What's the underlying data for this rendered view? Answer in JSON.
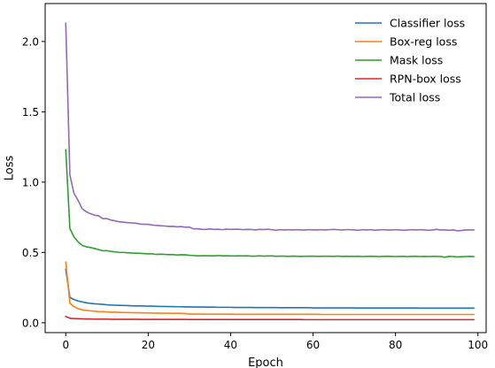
{
  "chart_data": {
    "type": "line",
    "xlabel": "Epoch",
    "ylabel": "Loss",
    "xlim": [
      -5,
      102
    ],
    "ylim": [
      -0.07,
      2.27
    ],
    "xticks": [
      0,
      20,
      40,
      60,
      80,
      100
    ],
    "yticks": [
      0.0,
      0.5,
      1.0,
      1.5,
      2.0
    ],
    "xtick_labels": [
      "0",
      "20",
      "40",
      "60",
      "80",
      "100"
    ],
    "ytick_labels": [
      "0.0",
      "0.5",
      "1.0",
      "1.5",
      "2.0"
    ],
    "grid": false,
    "legend_position": "top-right",
    "series": [
      {
        "name": "Classifier loss",
        "color": "#1f77b4",
        "x": [
          0,
          1,
          2,
          3,
          4,
          5,
          6,
          7,
          8,
          9,
          10,
          11,
          12,
          13,
          14,
          15,
          16,
          17,
          18,
          19,
          20,
          21,
          22,
          23,
          24,
          25,
          26,
          27,
          28,
          29,
          30,
          31,
          32,
          33,
          34,
          35,
          36,
          37,
          38,
          39,
          40,
          41,
          42,
          43,
          44,
          45,
          46,
          47,
          48,
          49,
          50,
          51,
          52,
          53,
          54,
          55,
          56,
          57,
          58,
          59,
          60,
          61,
          62,
          63,
          64,
          65,
          66,
          67,
          68,
          69,
          70,
          71,
          72,
          73,
          74,
          75,
          76,
          77,
          78,
          79,
          80,
          81,
          82,
          83,
          84,
          85,
          86,
          87,
          88,
          89,
          90,
          91,
          92,
          93,
          94,
          95,
          96,
          97,
          98,
          99
        ],
        "values": [
          0.38,
          0.18,
          0.165,
          0.155,
          0.148,
          0.142,
          0.138,
          0.135,
          0.133,
          0.131,
          0.128,
          0.126,
          0.125,
          0.124,
          0.123,
          0.122,
          0.121,
          0.12,
          0.12,
          0.119,
          0.118,
          0.118,
          0.117,
          0.116,
          0.116,
          0.115,
          0.115,
          0.114,
          0.114,
          0.113,
          0.113,
          0.112,
          0.112,
          0.112,
          0.111,
          0.111,
          0.111,
          0.11,
          0.11,
          0.11,
          0.11,
          0.109,
          0.109,
          0.109,
          0.109,
          0.109,
          0.108,
          0.108,
          0.108,
          0.108,
          0.108,
          0.108,
          0.107,
          0.107,
          0.107,
          0.107,
          0.107,
          0.107,
          0.107,
          0.107,
          0.106,
          0.106,
          0.106,
          0.106,
          0.106,
          0.106,
          0.106,
          0.106,
          0.106,
          0.106,
          0.106,
          0.105,
          0.105,
          0.105,
          0.105,
          0.105,
          0.105,
          0.105,
          0.105,
          0.105,
          0.105,
          0.105,
          0.105,
          0.105,
          0.105,
          0.105,
          0.104,
          0.104,
          0.104,
          0.104,
          0.104,
          0.104,
          0.104,
          0.104,
          0.104,
          0.104,
          0.104,
          0.104,
          0.104,
          0.104
        ]
      },
      {
        "name": "Box-reg loss",
        "color": "#ff7f0e",
        "x": [
          0,
          1,
          2,
          3,
          4,
          5,
          6,
          7,
          8,
          9,
          10,
          11,
          12,
          13,
          14,
          15,
          16,
          17,
          18,
          19,
          20,
          21,
          22,
          23,
          24,
          25,
          26,
          27,
          28,
          29,
          30,
          31,
          32,
          33,
          34,
          35,
          36,
          37,
          38,
          39,
          40,
          41,
          42,
          43,
          44,
          45,
          46,
          47,
          48,
          49,
          50,
          51,
          52,
          53,
          54,
          55,
          56,
          57,
          58,
          59,
          60,
          61,
          62,
          63,
          64,
          65,
          66,
          67,
          68,
          69,
          70,
          71,
          72,
          73,
          74,
          75,
          76,
          77,
          78,
          79,
          80,
          81,
          82,
          83,
          84,
          85,
          86,
          87,
          88,
          89,
          90,
          91,
          92,
          93,
          94,
          95,
          96,
          97,
          98,
          99
        ],
        "values": [
          0.43,
          0.14,
          0.115,
          0.1,
          0.092,
          0.088,
          0.085,
          0.082,
          0.08,
          0.079,
          0.077,
          0.076,
          0.075,
          0.074,
          0.073,
          0.073,
          0.072,
          0.071,
          0.071,
          0.07,
          0.07,
          0.069,
          0.069,
          0.068,
          0.068,
          0.068,
          0.067,
          0.067,
          0.067,
          0.066,
          0.062,
          0.062,
          0.062,
          0.062,
          0.061,
          0.061,
          0.061,
          0.061,
          0.061,
          0.061,
          0.061,
          0.06,
          0.06,
          0.06,
          0.06,
          0.06,
          0.06,
          0.06,
          0.06,
          0.06,
          0.06,
          0.06,
          0.06,
          0.06,
          0.06,
          0.06,
          0.06,
          0.06,
          0.06,
          0.06,
          0.06,
          0.06,
          0.059,
          0.059,
          0.059,
          0.059,
          0.059,
          0.059,
          0.059,
          0.059,
          0.059,
          0.059,
          0.059,
          0.059,
          0.059,
          0.059,
          0.059,
          0.059,
          0.059,
          0.059,
          0.059,
          0.059,
          0.059,
          0.059,
          0.059,
          0.059,
          0.059,
          0.059,
          0.059,
          0.059,
          0.059,
          0.059,
          0.059,
          0.059,
          0.059,
          0.059,
          0.059,
          0.059,
          0.059,
          0.059
        ]
      },
      {
        "name": "Mask loss",
        "color": "#2ca02c",
        "x": [
          0,
          1,
          2,
          3,
          4,
          5,
          6,
          7,
          8,
          9,
          10,
          11,
          12,
          13,
          14,
          15,
          16,
          17,
          18,
          19,
          20,
          21,
          22,
          23,
          24,
          25,
          26,
          27,
          28,
          29,
          30,
          31,
          32,
          33,
          34,
          35,
          36,
          37,
          38,
          39,
          40,
          41,
          42,
          43,
          44,
          45,
          46,
          47,
          48,
          49,
          50,
          51,
          52,
          53,
          54,
          55,
          56,
          57,
          58,
          59,
          60,
          61,
          62,
          63,
          64,
          65,
          66,
          67,
          68,
          69,
          70,
          71,
          72,
          73,
          74,
          75,
          76,
          77,
          78,
          79,
          80,
          81,
          82,
          83,
          84,
          85,
          86,
          87,
          88,
          89,
          90,
          91,
          92,
          93,
          94,
          95,
          96,
          97,
          98,
          99
        ],
        "values": [
          1.23,
          0.67,
          0.61,
          0.575,
          0.55,
          0.54,
          0.535,
          0.528,
          0.52,
          0.512,
          0.512,
          0.508,
          0.504,
          0.5,
          0.5,
          0.498,
          0.496,
          0.495,
          0.494,
          0.492,
          0.49,
          0.49,
          0.486,
          0.488,
          0.486,
          0.485,
          0.485,
          0.482,
          0.484,
          0.483,
          0.48,
          0.478,
          0.476,
          0.477,
          0.477,
          0.476,
          0.476,
          0.478,
          0.476,
          0.476,
          0.475,
          0.475,
          0.476,
          0.475,
          0.476,
          0.474,
          0.474,
          0.476,
          0.474,
          0.475,
          0.475,
          0.473,
          0.474,
          0.474,
          0.472,
          0.474,
          0.473,
          0.472,
          0.473,
          0.473,
          0.474,
          0.472,
          0.473,
          0.473,
          0.473,
          0.472,
          0.474,
          0.472,
          0.473,
          0.472,
          0.472,
          0.473,
          0.471,
          0.472,
          0.473,
          0.472,
          0.471,
          0.472,
          0.473,
          0.472,
          0.471,
          0.472,
          0.472,
          0.471,
          0.472,
          0.473,
          0.471,
          0.472,
          0.471,
          0.472,
          0.472,
          0.471,
          0.466,
          0.472,
          0.471,
          0.468,
          0.47,
          0.471,
          0.472,
          0.471
        ]
      },
      {
        "name": "RPN-box loss",
        "color": "#d62728",
        "x": [
          0,
          1,
          2,
          3,
          4,
          5,
          6,
          7,
          8,
          9,
          10,
          11,
          12,
          13,
          14,
          15,
          16,
          17,
          18,
          19,
          20,
          21,
          22,
          23,
          24,
          25,
          26,
          27,
          28,
          29,
          30,
          31,
          32,
          33,
          34,
          35,
          36,
          37,
          38,
          39,
          40,
          41,
          42,
          43,
          44,
          45,
          46,
          47,
          48,
          49,
          50,
          51,
          52,
          53,
          54,
          55,
          56,
          57,
          58,
          59,
          60,
          61,
          62,
          63,
          64,
          65,
          66,
          67,
          68,
          69,
          70,
          71,
          72,
          73,
          74,
          75,
          76,
          77,
          78,
          79,
          80,
          81,
          82,
          83,
          84,
          85,
          86,
          87,
          88,
          89,
          90,
          91,
          92,
          93,
          94,
          95,
          96,
          97,
          98,
          99
        ],
        "values": [
          0.045,
          0.032,
          0.03,
          0.029,
          0.028,
          0.027,
          0.027,
          0.026,
          0.026,
          0.026,
          0.026,
          0.025,
          0.025,
          0.025,
          0.025,
          0.025,
          0.025,
          0.025,
          0.024,
          0.024,
          0.024,
          0.024,
          0.024,
          0.024,
          0.024,
          0.024,
          0.024,
          0.024,
          0.024,
          0.024,
          0.023,
          0.023,
          0.023,
          0.023,
          0.023,
          0.023,
          0.023,
          0.023,
          0.023,
          0.023,
          0.023,
          0.023,
          0.023,
          0.023,
          0.023,
          0.023,
          0.023,
          0.023,
          0.023,
          0.023,
          0.023,
          0.023,
          0.023,
          0.023,
          0.023,
          0.023,
          0.023,
          0.023,
          0.022,
          0.022,
          0.022,
          0.022,
          0.022,
          0.022,
          0.022,
          0.022,
          0.022,
          0.022,
          0.022,
          0.022,
          0.022,
          0.022,
          0.022,
          0.022,
          0.022,
          0.022,
          0.022,
          0.022,
          0.022,
          0.022,
          0.022,
          0.022,
          0.022,
          0.022,
          0.022,
          0.022,
          0.022,
          0.022,
          0.022,
          0.022,
          0.022,
          0.022,
          0.022,
          0.022,
          0.022,
          0.022,
          0.022,
          0.022,
          0.022,
          0.022
        ]
      },
      {
        "name": "Total loss",
        "color": "#9467bd",
        "x": [
          0,
          1,
          2,
          3,
          4,
          5,
          6,
          7,
          8,
          9,
          10,
          11,
          12,
          13,
          14,
          15,
          16,
          17,
          18,
          19,
          20,
          21,
          22,
          23,
          24,
          25,
          26,
          27,
          28,
          29,
          30,
          31,
          32,
          33,
          34,
          35,
          36,
          37,
          38,
          39,
          40,
          41,
          42,
          43,
          44,
          45,
          46,
          47,
          48,
          49,
          50,
          51,
          52,
          53,
          54,
          55,
          56,
          57,
          58,
          59,
          60,
          61,
          62,
          63,
          64,
          65,
          66,
          67,
          68,
          69,
          70,
          71,
          72,
          73,
          74,
          75,
          76,
          77,
          78,
          79,
          80,
          81,
          82,
          83,
          84,
          85,
          86,
          87,
          88,
          89,
          90,
          91,
          92,
          93,
          94,
          95,
          96,
          97,
          98,
          99
        ],
        "values": [
          2.13,
          1.05,
          0.92,
          0.87,
          0.81,
          0.79,
          0.775,
          0.765,
          0.76,
          0.74,
          0.74,
          0.73,
          0.725,
          0.718,
          0.715,
          0.712,
          0.71,
          0.708,
          0.702,
          0.7,
          0.7,
          0.695,
          0.692,
          0.69,
          0.688,
          0.685,
          0.686,
          0.682,
          0.684,
          0.68,
          0.68,
          0.668,
          0.668,
          0.665,
          0.664,
          0.667,
          0.664,
          0.665,
          0.662,
          0.666,
          0.664,
          0.665,
          0.665,
          0.662,
          0.664,
          0.663,
          0.66,
          0.664,
          0.663,
          0.665,
          0.662,
          0.658,
          0.662,
          0.66,
          0.662,
          0.66,
          0.662,
          0.66,
          0.66,
          0.662,
          0.661,
          0.66,
          0.662,
          0.66,
          0.662,
          0.664,
          0.662,
          0.66,
          0.662,
          0.662,
          0.66,
          0.658,
          0.662,
          0.66,
          0.662,
          0.658,
          0.66,
          0.662,
          0.66,
          0.66,
          0.662,
          0.66,
          0.658,
          0.66,
          0.662,
          0.66,
          0.662,
          0.66,
          0.658,
          0.66,
          0.664,
          0.66,
          0.66,
          0.658,
          0.66,
          0.654,
          0.656,
          0.66,
          0.66,
          0.66
        ]
      }
    ]
  }
}
